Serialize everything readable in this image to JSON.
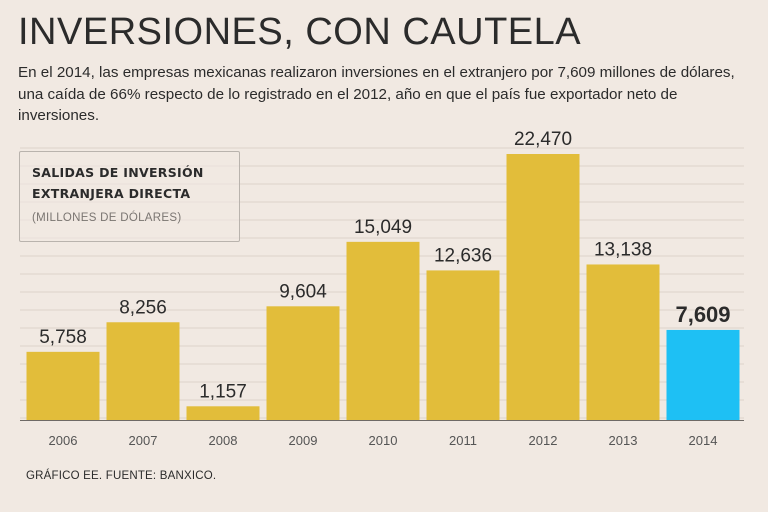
{
  "header": {
    "title": "INVERSIONES, CON CAUTELA",
    "subtitle": "En el 2014, las empresas mexicanas realizaron inversiones en el extranjero por 7,609 millones de dólares, una caída de 66% respecto de lo registrado en el 2012, año en que el país fue exportador neto de inversiones."
  },
  "legend": {
    "line1": "SALIDAS DE INVERSIÓN",
    "line2": "EXTRANJERA DIRECTA",
    "unit": "(MILLONES DE DÓLARES)"
  },
  "footer": {
    "source": "GRÁFICO EE. FUENTE: BANXICO."
  },
  "colors": {
    "bar": "#e2bd3a",
    "highlight": "#1ec0f4",
    "grid": "#ddd3cb",
    "text": "#2b2b2b"
  },
  "chart_data": {
    "type": "bar",
    "title": "SALIDAS DE INVERSIÓN EXTRANJERA DIRECTA",
    "ylabel": "(MILLONES DE DÓLARES)",
    "xlabel": "",
    "categories": [
      "2006",
      "2007",
      "2008",
      "2009",
      "2010",
      "2011",
      "2012",
      "2013",
      "2014"
    ],
    "values": [
      5758,
      8256,
      1157,
      9604,
      15049,
      12636,
      22470,
      13138,
      7609
    ],
    "labels": [
      "5,758",
      "8,256",
      "1,157",
      "9,604",
      "15,049",
      "12,636",
      "22,470",
      "13,138",
      "7,609"
    ],
    "highlight_index": 8,
    "ylim": [
      0,
      22470
    ],
    "grid": true
  }
}
